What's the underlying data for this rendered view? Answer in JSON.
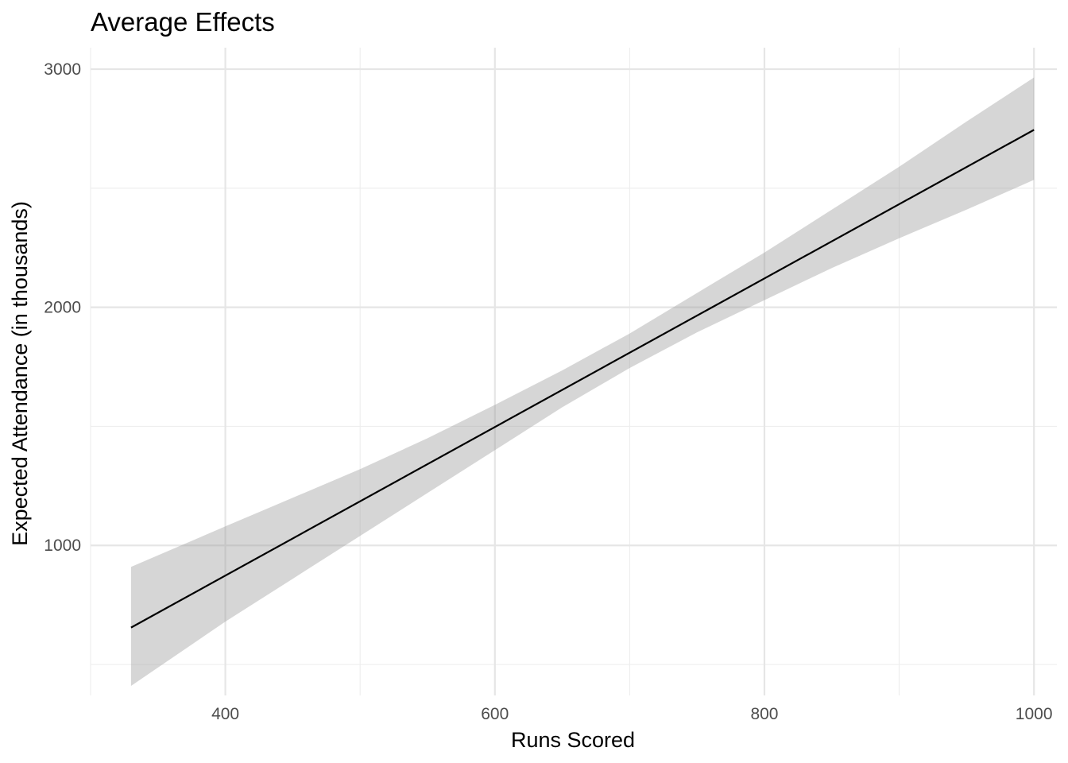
{
  "chart_data": {
    "type": "line",
    "title": "Average Effects",
    "xlabel": "Runs Scored",
    "ylabel": "Expected Attendance (in thousands)",
    "xlim": [
      300,
      1017
    ],
    "ylim": [
      370,
      3090
    ],
    "x_ticks": [
      400,
      600,
      800,
      1000
    ],
    "x_minor_ticks": [
      300,
      500,
      700,
      900
    ],
    "y_ticks": [
      1000,
      2000,
      3000
    ],
    "y_minor_ticks": [
      500,
      1500,
      2500
    ],
    "grid": true,
    "legend": "none",
    "series": [
      {
        "x": [
          330,
          1000
        ],
        "y": [
          655,
          2745
        ]
      }
    ],
    "confidence_band": {
      "x": [
        330,
        400,
        450,
        500,
        550,
        600,
        650,
        700,
        750,
        800,
        850,
        900,
        950,
        1000
      ],
      "lower": [
        410,
        680,
        860,
        1040,
        1220,
        1400,
        1580,
        1745,
        1895,
        2030,
        2165,
        2290,
        2410,
        2535
      ],
      "upper": [
        910,
        1080,
        1200,
        1320,
        1450,
        1590,
        1735,
        1890,
        2060,
        2230,
        2410,
        2590,
        2780,
        2965
      ]
    },
    "colors": {
      "line": "#000000",
      "band": "#999999",
      "grid": "#e6e6e6"
    }
  }
}
